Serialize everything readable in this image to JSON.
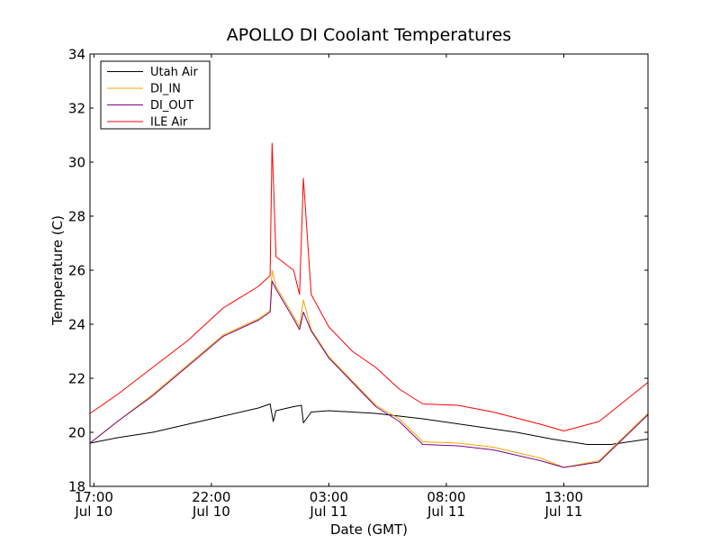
{
  "chart_data": {
    "type": "line",
    "title": "APOLLO DI Coolant Temperatures",
    "xlabel": "Date (GMT)",
    "ylabel": "Temperature (C)",
    "xlim": [
      "2014-07-10T16:50",
      "2014-07-11T16:35"
    ],
    "ylim": [
      18,
      34
    ],
    "y_ticks": [
      18,
      20,
      22,
      24,
      26,
      28,
      30,
      32,
      34
    ],
    "x_ticks": [
      {
        "time": "2014-07-10T17:00",
        "label_time": "17:00",
        "label_date": "Jul 10"
      },
      {
        "time": "2014-07-10T22:00",
        "label_time": "22:00",
        "label_date": "Jul 10"
      },
      {
        "time": "2014-07-11T03:00",
        "label_time": "03:00",
        "label_date": "Jul 11"
      },
      {
        "time": "2014-07-11T08:00",
        "label_time": "08:00",
        "label_date": "Jul 11"
      },
      {
        "time": "2014-07-11T13:00",
        "label_time": "13:00",
        "label_date": "Jul 11"
      }
    ],
    "grid": false,
    "legend_position": "top-left",
    "series": [
      {
        "name": "Utah Air",
        "color": "#000000",
        "points": [
          [
            "2014-07-10T16:50",
            19.6
          ],
          [
            "2014-07-10T18:00",
            19.8
          ],
          [
            "2014-07-10T19:30",
            20.0
          ],
          [
            "2014-07-10T21:00",
            20.3
          ],
          [
            "2014-07-10T22:30",
            20.6
          ],
          [
            "2014-07-11T00:00",
            20.9
          ],
          [
            "2014-07-11T00:30",
            21.05
          ],
          [
            "2014-07-11T00:38",
            20.4
          ],
          [
            "2014-07-11T00:45",
            20.8
          ],
          [
            "2014-07-11T01:30",
            20.95
          ],
          [
            "2014-07-11T01:50",
            21.0
          ],
          [
            "2014-07-11T01:55",
            20.35
          ],
          [
            "2014-07-11T02:15",
            20.75
          ],
          [
            "2014-07-11T03:00",
            20.8
          ],
          [
            "2014-07-11T05:00",
            20.7
          ],
          [
            "2014-07-11T07:00",
            20.5
          ],
          [
            "2014-07-11T09:00",
            20.25
          ],
          [
            "2014-07-11T11:00",
            20.0
          ],
          [
            "2014-07-11T12:30",
            19.75
          ],
          [
            "2014-07-11T14:00",
            19.55
          ],
          [
            "2014-07-11T15:00",
            19.55
          ],
          [
            "2014-07-11T16:35",
            19.75
          ]
        ]
      },
      {
        "name": "DI_IN",
        "color": "#f0a800",
        "points": [
          [
            "2014-07-10T16:50",
            19.6
          ],
          [
            "2014-07-10T18:00",
            20.4
          ],
          [
            "2014-07-10T19:30",
            21.4
          ],
          [
            "2014-07-10T21:00",
            22.5
          ],
          [
            "2014-07-10T22:30",
            23.6
          ],
          [
            "2014-07-11T00:00",
            24.2
          ],
          [
            "2014-07-11T00:30",
            24.5
          ],
          [
            "2014-07-11T00:35",
            26.0
          ],
          [
            "2014-07-11T00:45",
            25.4
          ],
          [
            "2014-07-11T01:30",
            24.3
          ],
          [
            "2014-07-11T01:45",
            23.9
          ],
          [
            "2014-07-11T01:55",
            24.9
          ],
          [
            "2014-07-11T02:15",
            23.8
          ],
          [
            "2014-07-11T03:00",
            22.8
          ],
          [
            "2014-07-11T04:00",
            21.9
          ],
          [
            "2014-07-11T05:00",
            21.0
          ],
          [
            "2014-07-11T06:00",
            20.5
          ],
          [
            "2014-07-11T07:00",
            19.65
          ],
          [
            "2014-07-11T08:30",
            19.6
          ],
          [
            "2014-07-11T10:00",
            19.45
          ],
          [
            "2014-07-11T12:00",
            19.05
          ],
          [
            "2014-07-11T13:00",
            18.7
          ],
          [
            "2014-07-11T14:30",
            18.95
          ],
          [
            "2014-07-11T16:35",
            20.7
          ]
        ]
      },
      {
        "name": "DI_OUT",
        "color": "#800080",
        "points": [
          [
            "2014-07-10T16:50",
            19.6
          ],
          [
            "2014-07-10T18:00",
            20.4
          ],
          [
            "2014-07-10T19:30",
            21.35
          ],
          [
            "2014-07-10T21:00",
            22.45
          ],
          [
            "2014-07-10T22:30",
            23.55
          ],
          [
            "2014-07-11T00:00",
            24.15
          ],
          [
            "2014-07-11T00:30",
            24.45
          ],
          [
            "2014-07-11T00:35",
            25.6
          ],
          [
            "2014-07-11T00:45",
            25.3
          ],
          [
            "2014-07-11T01:30",
            24.2
          ],
          [
            "2014-07-11T01:45",
            23.8
          ],
          [
            "2014-07-11T01:55",
            24.45
          ],
          [
            "2014-07-11T02:15",
            23.75
          ],
          [
            "2014-07-11T03:00",
            22.75
          ],
          [
            "2014-07-11T04:00",
            21.85
          ],
          [
            "2014-07-11T05:00",
            20.95
          ],
          [
            "2014-07-11T06:00",
            20.4
          ],
          [
            "2014-07-11T07:00",
            19.55
          ],
          [
            "2014-07-11T08:30",
            19.5
          ],
          [
            "2014-07-11T10:00",
            19.35
          ],
          [
            "2014-07-11T12:00",
            18.95
          ],
          [
            "2014-07-11T13:00",
            18.7
          ],
          [
            "2014-07-11T14:30",
            18.9
          ],
          [
            "2014-07-11T16:35",
            20.65
          ]
        ]
      },
      {
        "name": "ILE Air",
        "color": "#ff0000",
        "points": [
          [
            "2014-07-10T16:50",
            20.7
          ],
          [
            "2014-07-10T18:00",
            21.4
          ],
          [
            "2014-07-10T19:30",
            22.4
          ],
          [
            "2014-07-10T21:00",
            23.4
          ],
          [
            "2014-07-10T22:30",
            24.6
          ],
          [
            "2014-07-11T00:00",
            25.4
          ],
          [
            "2014-07-11T00:30",
            25.8
          ],
          [
            "2014-07-11T00:35",
            30.7
          ],
          [
            "2014-07-11T00:45",
            26.5
          ],
          [
            "2014-07-11T01:30",
            26.0
          ],
          [
            "2014-07-11T01:45",
            25.1
          ],
          [
            "2014-07-11T01:55",
            29.4
          ],
          [
            "2014-07-11T02:15",
            25.1
          ],
          [
            "2014-07-11T03:00",
            23.9
          ],
          [
            "2014-07-11T04:00",
            23.0
          ],
          [
            "2014-07-11T05:00",
            22.4
          ],
          [
            "2014-07-11T06:00",
            21.6
          ],
          [
            "2014-07-11T07:00",
            21.05
          ],
          [
            "2014-07-11T08:30",
            21.0
          ],
          [
            "2014-07-11T10:00",
            20.75
          ],
          [
            "2014-07-11T12:00",
            20.3
          ],
          [
            "2014-07-11T13:00",
            20.05
          ],
          [
            "2014-07-11T14:30",
            20.4
          ],
          [
            "2014-07-11T16:35",
            21.85
          ]
        ]
      }
    ]
  }
}
